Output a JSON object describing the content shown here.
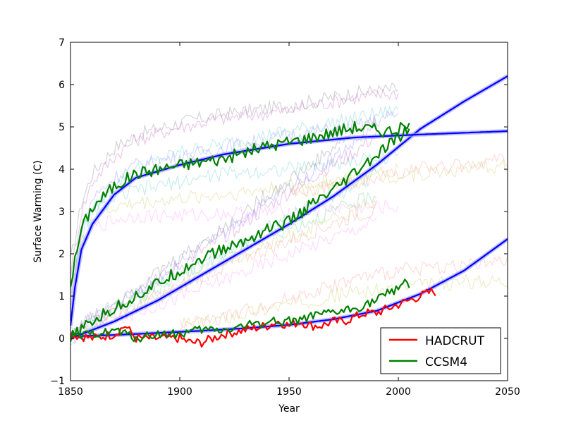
{
  "chart_data": {
    "type": "line",
    "title": "",
    "xlabel": "Year",
    "ylabel": "Surface Warming (C)",
    "xlim": [
      1850,
      2050
    ],
    "ylim": [
      -1,
      7
    ],
    "xticks": [
      1850,
      1900,
      1950,
      2000,
      2050
    ],
    "yticks": [
      -1,
      0,
      1,
      2,
      3,
      4,
      5,
      6,
      7
    ],
    "grid": false,
    "legend_position": "lower-right",
    "colors": {
      "hadcrut": "#ff0000",
      "ccsm4": "#008000",
      "fit": "#0000ff",
      "fit_band": "#9999ff"
    },
    "legend": [
      {
        "name": "HADCRUT",
        "color": "#ff0000"
      },
      {
        "name": "CCSM4",
        "color": "#008000"
      }
    ],
    "series": [
      {
        "name": "HADCRUT",
        "color": "#ff0000",
        "x": [
          1850,
          1860,
          1870,
          1875,
          1880,
          1890,
          1900,
          1905,
          1910,
          1920,
          1930,
          1940,
          1945,
          1950,
          1955,
          1960,
          1965,
          1970,
          1975,
          1980,
          1985,
          1990,
          1995,
          2000,
          2005,
          2010,
          2015,
          2017
        ],
        "y": [
          0.1,
          0.0,
          0.1,
          0.3,
          0.0,
          0.0,
          0.0,
          -0.1,
          -0.1,
          0.1,
          0.2,
          0.3,
          0.4,
          0.3,
          0.4,
          0.3,
          0.3,
          0.4,
          0.4,
          0.5,
          0.6,
          0.6,
          0.7,
          0.8,
          0.9,
          1.0,
          1.1,
          1.1
        ]
      },
      {
        "name": "CCSM4",
        "color": "#008000",
        "x": [
          1850,
          1860,
          1870,
          1880,
          1890,
          1900,
          1910,
          1920,
          1930,
          1940,
          1950,
          1960,
          1970,
          1980,
          1990,
          2000,
          2003,
          2005
        ],
        "y": [
          0.0,
          0.1,
          0.2,
          0.0,
          0.1,
          0.1,
          0.2,
          0.2,
          0.3,
          0.4,
          0.4,
          0.5,
          0.6,
          0.7,
          0.9,
          1.2,
          1.4,
          1.2
        ]
      }
    ],
    "fit_curves": [
      {
        "x": [
          1850,
          1870,
          1890,
          1910,
          1930,
          1950,
          1970,
          1990,
          2010,
          2030,
          2050
        ],
        "y": [
          0.05,
          0.08,
          0.13,
          0.18,
          0.24,
          0.32,
          0.45,
          0.65,
          1.05,
          1.6,
          2.35
        ]
      },
      {
        "x": [
          1850,
          1870,
          1890,
          1910,
          1930,
          1950,
          1970,
          1990,
          2010,
          2030,
          2050
        ],
        "y": [
          0.0,
          0.4,
          0.9,
          1.5,
          2.1,
          2.7,
          3.35,
          4.1,
          4.95,
          5.6,
          6.2
        ]
      },
      {
        "x": [
          1850,
          1852,
          1855,
          1860,
          1870,
          1880,
          1900,
          1920,
          1950,
          1980,
          2010,
          2050
        ],
        "y": [
          0.3,
          1.2,
          2.1,
          2.7,
          3.4,
          3.8,
          4.1,
          4.35,
          4.6,
          4.75,
          4.82,
          4.9
        ]
      }
    ],
    "ccsm4_runs": [
      {
        "x": [
          1850,
          1855,
          1860,
          1870,
          1880,
          1890,
          1900,
          1920,
          1940,
          1960,
          1980,
          1995,
          2005
        ],
        "y": [
          1.3,
          2.6,
          3.1,
          3.6,
          3.9,
          4.0,
          4.1,
          4.25,
          4.55,
          4.75,
          5.0,
          4.9,
          5.0
        ]
      },
      {
        "x": [
          1850,
          1860,
          1870,
          1880,
          1890,
          1900,
          1910,
          1920,
          1930,
          1940,
          1950,
          1960,
          1970,
          1980,
          1990,
          2000,
          2005
        ],
        "y": [
          0.0,
          0.4,
          0.7,
          1.0,
          1.3,
          1.6,
          1.9,
          2.1,
          2.3,
          2.6,
          2.75,
          3.15,
          3.45,
          3.9,
          4.3,
          4.75,
          4.95
        ]
      }
    ],
    "ensemble_background": {
      "opacity": 0.35,
      "colors": [
        "#ff6666",
        "#9966cc",
        "#ff99ff",
        "#66cccc",
        "#cccc66",
        "#8888ff",
        "#888888",
        "#ff9999"
      ],
      "runs": [
        {
          "color": "#888888",
          "x": [
            1850,
            1855,
            1860,
            1870,
            1880,
            1900,
            1920,
            1950,
            1980,
            2000
          ],
          "y": [
            1.8,
            3.2,
            3.9,
            4.5,
            4.8,
            5.1,
            5.3,
            5.5,
            5.8,
            5.9
          ]
        },
        {
          "color": "#cc66cc",
          "x": [
            1850,
            1855,
            1860,
            1870,
            1880,
            1900,
            1920,
            1950,
            1980,
            2000
          ],
          "y": [
            1.5,
            3.0,
            3.7,
            4.3,
            4.7,
            5.0,
            5.2,
            5.4,
            5.7,
            5.8
          ]
        },
        {
          "color": "#66cccc",
          "x": [
            1850,
            1855,
            1860,
            1870,
            1880,
            1900,
            1920,
            1950,
            1980,
            2000
          ],
          "y": [
            1.0,
            2.4,
            3.0,
            3.6,
            4.0,
            4.4,
            4.6,
            4.9,
            5.2,
            5.4
          ]
        },
        {
          "color": "#8888ff",
          "x": [
            1850,
            1855,
            1860,
            1870,
            1880,
            1900,
            1920,
            1950,
            1980,
            2000
          ],
          "y": [
            1.1,
            2.6,
            3.3,
            3.8,
            4.1,
            4.3,
            4.5,
            4.8,
            5.0,
            5.3
          ]
        },
        {
          "color": "#ff99ff",
          "x": [
            1850,
            1855,
            1860,
            1870,
            1880,
            1900,
            1920,
            1950,
            1980,
            2000
          ],
          "y": [
            0.9,
            2.2,
            2.6,
            2.8,
            2.9,
            2.9,
            2.95,
            3.0,
            3.1,
            3.1
          ]
        },
        {
          "color": "#cccc66",
          "x": [
            1850,
            1855,
            1860,
            1870,
            1880,
            1900,
            1920,
            1950,
            1980,
            2000
          ],
          "y": [
            1.0,
            2.3,
            2.8,
            3.1,
            3.2,
            3.3,
            3.4,
            3.6,
            3.8,
            4.0
          ]
        },
        {
          "color": "#66cccc",
          "x": [
            1850,
            1855,
            1860,
            1870,
            1880,
            1900,
            1920,
            1950,
            1980,
            2000
          ],
          "y": [
            1.2,
            2.5,
            3.0,
            3.3,
            3.5,
            3.7,
            3.9,
            4.0,
            4.2,
            4.3
          ]
        },
        {
          "color": "#888888",
          "x": [
            1850,
            1860,
            1880,
            1900,
            1920,
            1940,
            1960,
            1980,
            1990
          ],
          "y": [
            0.1,
            0.5,
            1.2,
            1.9,
            2.6,
            3.4,
            4.1,
            4.9,
            5.1
          ]
        },
        {
          "color": "#cc66cc",
          "x": [
            1850,
            1860,
            1880,
            1900,
            1920,
            1940,
            1960,
            1980,
            1990
          ],
          "y": [
            0.1,
            0.4,
            1.1,
            1.7,
            2.4,
            3.1,
            3.8,
            4.4,
            4.8
          ]
        },
        {
          "color": "#66cccc",
          "x": [
            1850,
            1860,
            1880,
            1900,
            1920,
            1940,
            1960,
            1980,
            1990
          ],
          "y": [
            0.0,
            0.3,
            0.9,
            1.5,
            2.0,
            2.6,
            3.1,
            3.6,
            3.9
          ]
        },
        {
          "color": "#66cc99",
          "x": [
            1850,
            1860,
            1880,
            1900,
            1920,
            1940,
            1960,
            1980,
            1990
          ],
          "y": [
            0.1,
            0.4,
            1.0,
            1.5,
            2.0,
            2.4,
            2.8,
            3.2,
            3.4
          ]
        },
        {
          "color": "#ff9999",
          "x": [
            1850,
            1860,
            1880,
            1900,
            1920,
            1940,
            1960,
            1980,
            1990
          ],
          "y": [
            0.0,
            0.3,
            0.7,
            1.2,
            1.7,
            2.1,
            2.5,
            2.9,
            3.0
          ]
        },
        {
          "color": "#ff99ff",
          "x": [
            1850,
            1860,
            1880,
            1900,
            1920,
            1940,
            1960,
            1980,
            1990
          ],
          "y": [
            0.0,
            0.2,
            0.6,
            1.0,
            1.4,
            1.8,
            2.2,
            2.6,
            2.8
          ]
        },
        {
          "color": "#8888ff",
          "x": [
            1850,
            1860,
            1880,
            1900,
            1920,
            1940,
            1960,
            1980,
            1990
          ],
          "y": [
            0.1,
            0.5,
            1.1,
            1.8,
            2.5,
            3.2,
            3.9,
            4.6,
            5.0
          ]
        },
        {
          "color": "#cccc66",
          "x": [
            1850,
            1860,
            1880,
            1900,
            1920,
            1940,
            1960,
            1980,
            1990
          ],
          "y": [
            0.0,
            0.3,
            0.8,
            1.3,
            1.8,
            2.2,
            2.6,
            3.0,
            3.3
          ]
        },
        {
          "color": "#ff9999",
          "x": [
            1950,
            1970,
            1990,
            2010,
            2030,
            2050
          ],
          "y": [
            3.4,
            3.6,
            3.8,
            4.0,
            4.1,
            4.2
          ]
        },
        {
          "color": "#cccc66",
          "x": [
            1950,
            1970,
            1990,
            2010,
            2030,
            2050
          ],
          "y": [
            3.5,
            3.6,
            3.8,
            3.9,
            4.0,
            4.1
          ]
        },
        {
          "color": "#ff9999",
          "x": [
            1900,
            1920,
            1940,
            1960,
            1980,
            2000,
            2020,
            2050
          ],
          "y": [
            0.3,
            0.5,
            0.8,
            1.1,
            1.4,
            1.6,
            1.7,
            1.8
          ]
        },
        {
          "color": "#cccc66",
          "x": [
            1900,
            1920,
            1940,
            1960,
            1980,
            2000,
            2020,
            2050
          ],
          "y": [
            0.3,
            0.5,
            0.7,
            0.9,
            1.1,
            1.2,
            1.3,
            1.4
          ]
        }
      ]
    }
  }
}
